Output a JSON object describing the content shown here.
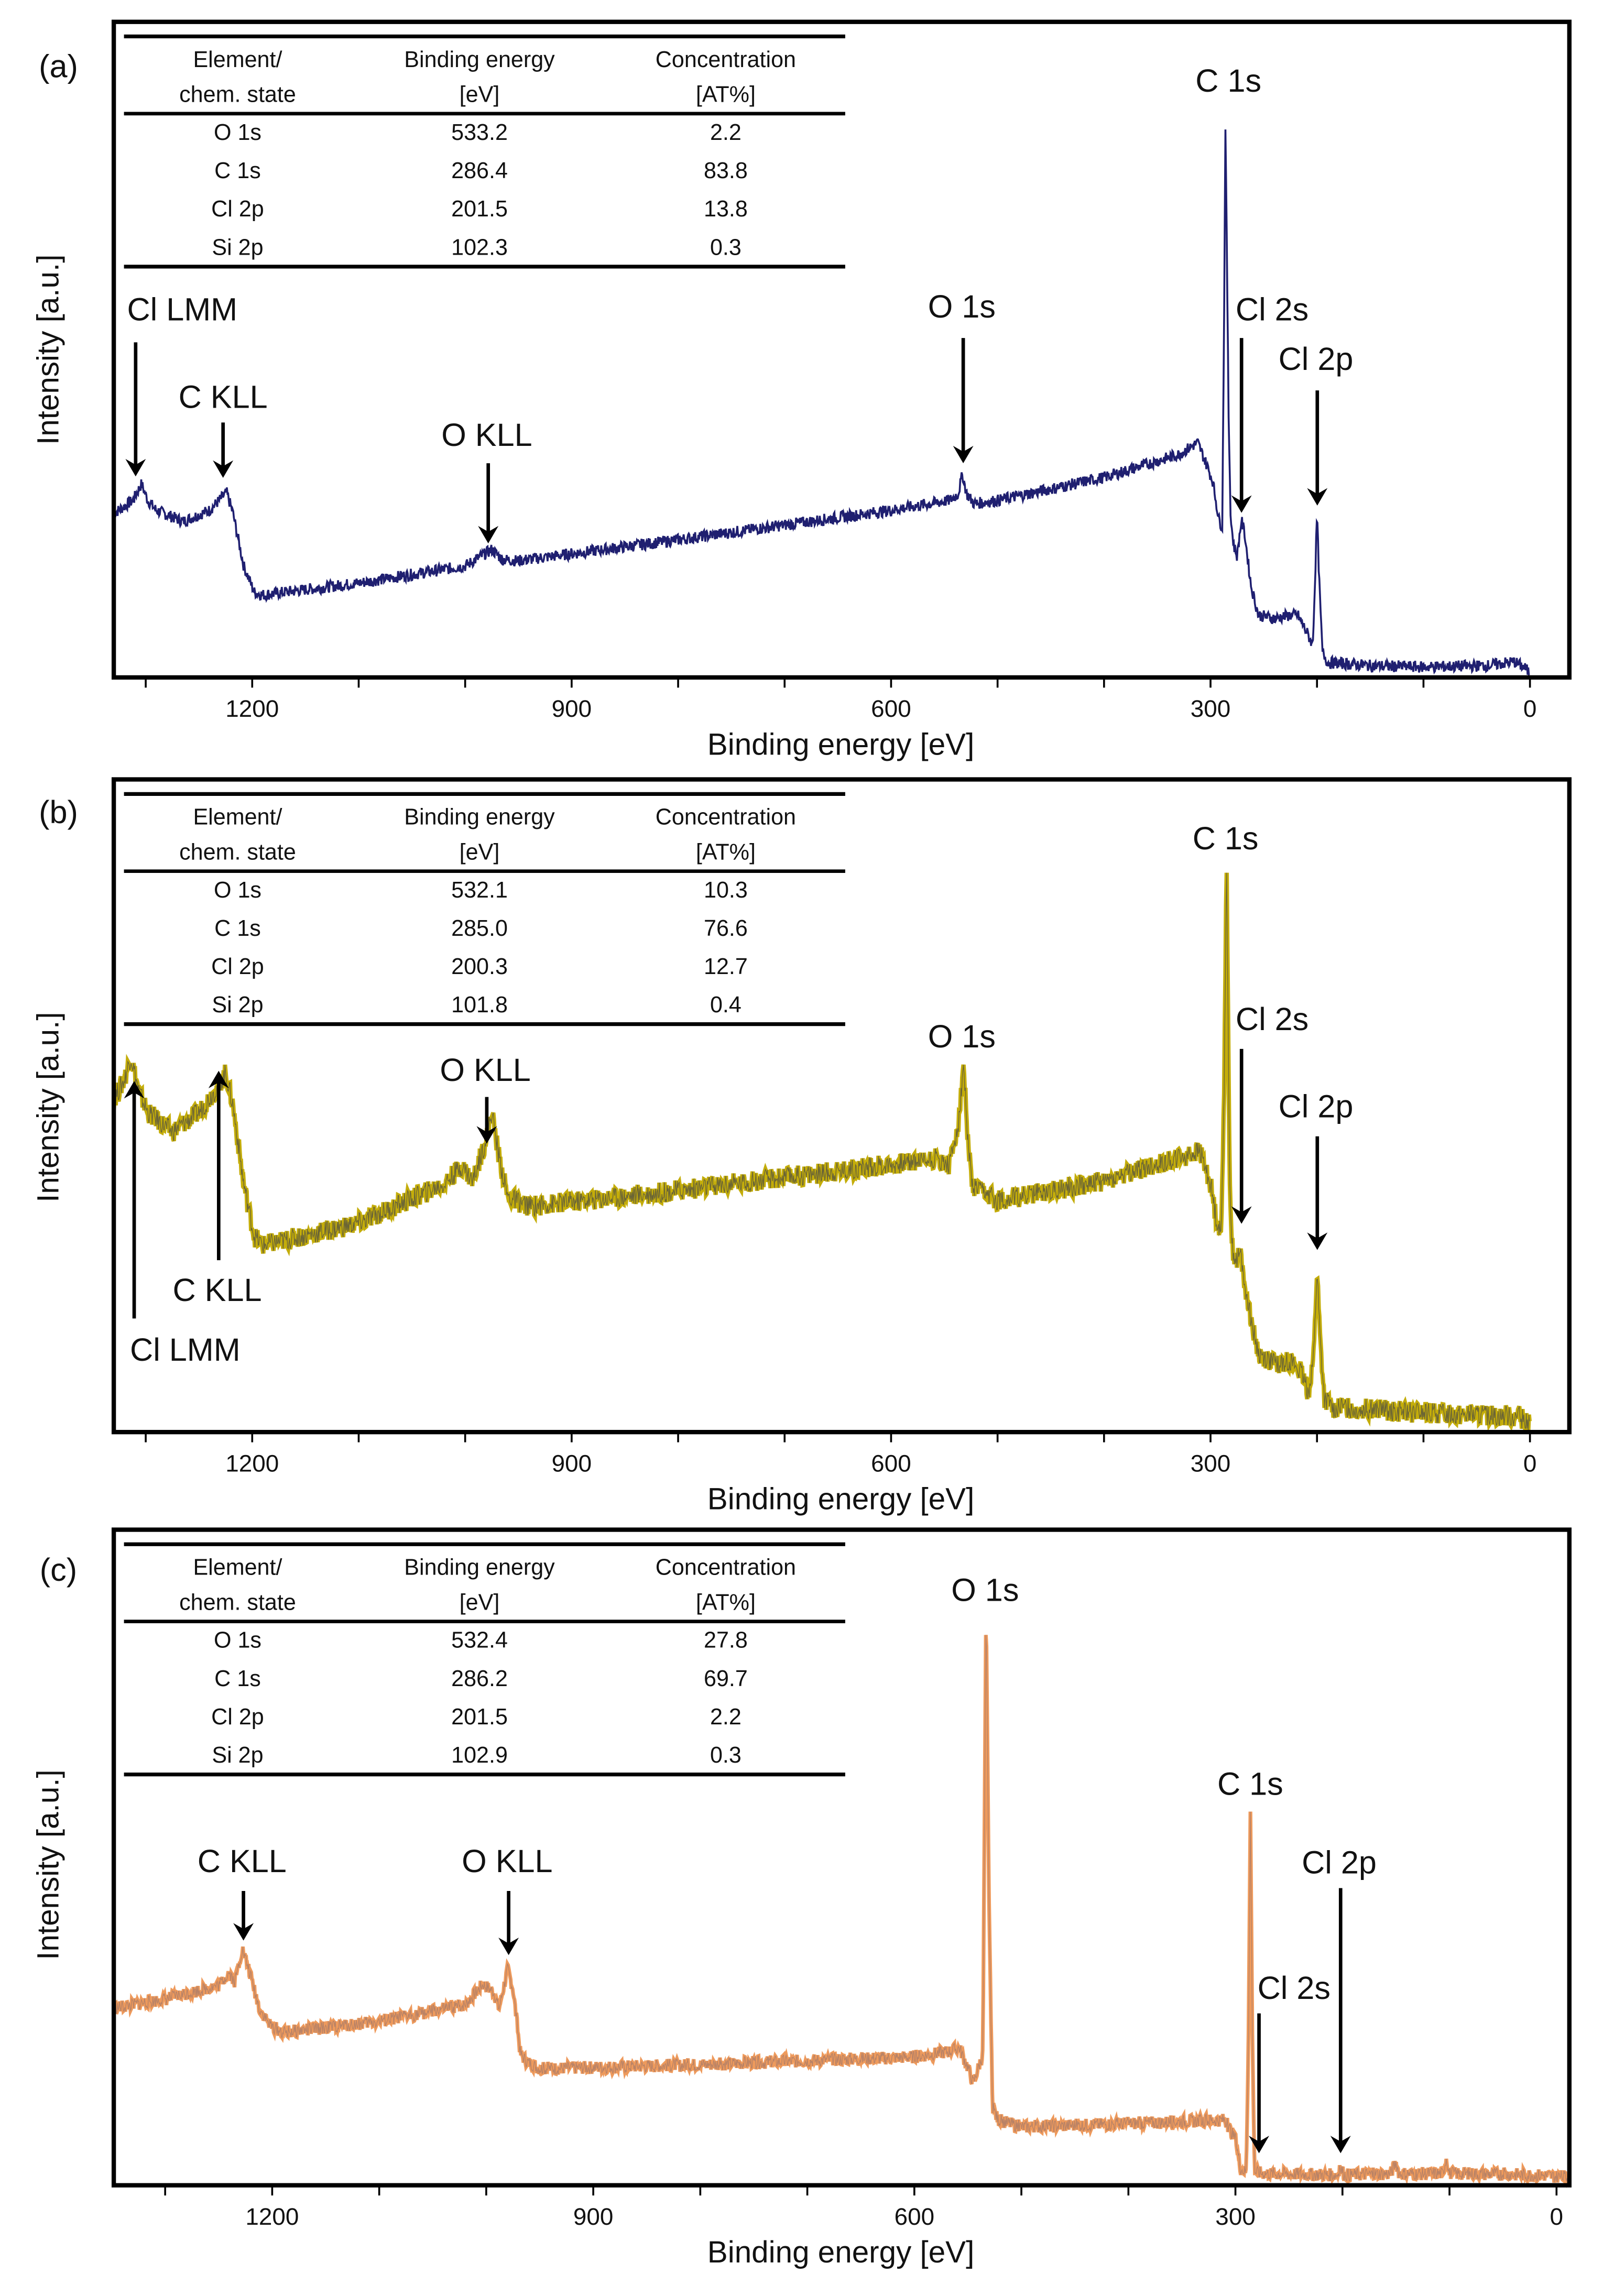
{
  "chart_data": [
    {
      "type": "line",
      "panel_label": "(a)",
      "xlabel": "Binding energy [eV]",
      "ylabel": "Intensity [a.u.]",
      "xlim": [
        1330,
        -37
      ],
      "x_reversed": true,
      "xticks": [
        1200,
        900,
        600,
        300,
        0
      ],
      "minor_tick_step": 100,
      "grid": false,
      "line_color": "#1f1f70",
      "table": {
        "headers": [
          [
            "Element/",
            "chem. state"
          ],
          [
            "Binding energy",
            "[eV]"
          ],
          [
            "Concentration",
            "[AT%]"
          ]
        ],
        "rows": [
          [
            "O 1s",
            "533.2",
            "2.2"
          ],
          [
            "C 1s",
            "286.4",
            "83.8"
          ],
          [
            "Cl 2p",
            "201.5",
            "13.8"
          ],
          [
            "Si 2p",
            "102.3",
            "0.3"
          ]
        ]
      },
      "annotations": [
        {
          "label": "Cl LMM",
          "energy": 1302
        },
        {
          "label": "C KLL",
          "energy": 1225
        },
        {
          "label": "O KLL",
          "energy": 972
        },
        {
          "label": "O 1s",
          "energy": 533
        },
        {
          "label": "C 1s",
          "energy": 286
        },
        {
          "label": "Cl 2s",
          "energy": 270
        },
        {
          "label": "Cl 2p",
          "energy": 200
        }
      ],
      "points": [
        [
          1330,
          25
        ],
        [
          1312,
          27
        ],
        [
          1304,
          29.5
        ],
        [
          1298,
          27
        ],
        [
          1290,
          25.5
        ],
        [
          1265,
          23.8
        ],
        [
          1240,
          25.5
        ],
        [
          1228,
          27.5
        ],
        [
          1224,
          28.2
        ],
        [
          1218,
          25
        ],
        [
          1208,
          17
        ],
        [
          1198,
          13
        ],
        [
          1190,
          12.6
        ],
        [
          1100,
          14.4
        ],
        [
          1000,
          17
        ],
        [
          985,
          18.5
        ],
        [
          975,
          19.5
        ],
        [
          965,
          18
        ],
        [
          950,
          17.8
        ],
        [
          800,
          21
        ],
        [
          600,
          25.5
        ],
        [
          545,
          27
        ],
        [
          537,
          28
        ],
        [
          533,
          31
        ],
        [
          529,
          28
        ],
        [
          522,
          26.5
        ],
        [
          500,
          27
        ],
        [
          400,
          30.5
        ],
        [
          330,
          34
        ],
        [
          312,
          35.8
        ],
        [
          305,
          33
        ],
        [
          298,
          30
        ],
        [
          292,
          24
        ],
        [
          289,
          23
        ],
        [
          287,
          60
        ],
        [
          286,
          84.4
        ],
        [
          285,
          70
        ],
        [
          283,
          40
        ],
        [
          281,
          24
        ],
        [
          278,
          20
        ],
        [
          275,
          18.5
        ],
        [
          271,
          24
        ],
        [
          268,
          22
        ],
        [
          262,
          14
        ],
        [
          255,
          9.5
        ],
        [
          240,
          9
        ],
        [
          225,
          9.5
        ],
        [
          218,
          9.5
        ],
        [
          210,
          7
        ],
        [
          204,
          5
        ],
        [
          202,
          14
        ],
        [
          200,
          25
        ],
        [
          198,
          15
        ],
        [
          195,
          4
        ],
        [
          190,
          2.3
        ],
        [
          150,
          1.8
        ],
        [
          100,
          1.6
        ],
        [
          40,
          1.8
        ],
        [
          15,
          2.4
        ],
        [
          5,
          1.5
        ],
        [
          0,
          0.6
        ]
      ]
    },
    {
      "type": "line",
      "panel_label": "(b)",
      "xlabel": "Binding energy [eV]",
      "ylabel": "Intensity [a.u.]",
      "xlim": [
        1330,
        -37
      ],
      "x_reversed": true,
      "xticks": [
        1200,
        900,
        600,
        300,
        0
      ],
      "minor_tick_step": 100,
      "grid": false,
      "line_color": "#c4ad0a",
      "table": {
        "headers": [
          [
            "Element/",
            "chem. state"
          ],
          [
            "Binding energy",
            "[eV]"
          ],
          [
            "Concentration",
            "[AT%]"
          ]
        ],
        "rows": [
          [
            "O 1s",
            "532.1",
            "10.3"
          ],
          [
            "C 1s",
            "285.0",
            "76.6"
          ],
          [
            "Cl 2p",
            "200.3",
            "12.7"
          ],
          [
            "Si 2p",
            "101.8",
            "0.4"
          ]
        ]
      },
      "annotations": [
        {
          "label": "Cl LMM",
          "energy": 1313
        },
        {
          "label": "C KLL",
          "energy": 1225
        },
        {
          "label": "O KLL",
          "energy": 973
        },
        {
          "label": "O 1s",
          "energy": 532
        },
        {
          "label": "C 1s",
          "energy": 285
        },
        {
          "label": "Cl 2s",
          "energy": 270
        },
        {
          "label": "Cl 2p",
          "energy": 200
        }
      ],
      "points": [
        [
          1330,
          51
        ],
        [
          1320,
          54
        ],
        [
          1314,
          57.6
        ],
        [
          1306,
          52
        ],
        [
          1298,
          49
        ],
        [
          1275,
          46
        ],
        [
          1250,
          49
        ],
        [
          1232,
          53
        ],
        [
          1225,
          55
        ],
        [
          1218,
          50
        ],
        [
          1208,
          38
        ],
        [
          1198,
          30
        ],
        [
          1190,
          28.6
        ],
        [
          1100,
          32
        ],
        [
          1020,
          38
        ],
        [
          1003,
          40.8
        ],
        [
          993,
          38.5
        ],
        [
          982,
          44
        ],
        [
          975,
          49
        ],
        [
          968,
          42
        ],
        [
          960,
          36
        ],
        [
          940,
          34.6
        ],
        [
          800,
          37
        ],
        [
          600,
          41
        ],
        [
          560,
          42
        ],
        [
          545,
          41
        ],
        [
          536,
          48
        ],
        [
          532,
          56.5
        ],
        [
          528,
          45
        ],
        [
          524,
          37.5
        ],
        [
          500,
          35.5
        ],
        [
          400,
          38.5
        ],
        [
          320,
          42.5
        ],
        [
          310,
          43
        ],
        [
          300,
          38
        ],
        [
          295,
          33
        ],
        [
          290,
          30
        ],
        [
          287,
          55
        ],
        [
          285,
          87.7
        ],
        [
          284,
          70
        ],
        [
          282,
          40
        ],
        [
          280,
          28.6
        ],
        [
          276,
          26
        ],
        [
          272,
          27.5
        ],
        [
          268,
          23
        ],
        [
          262,
          17.5
        ],
        [
          255,
          12
        ],
        [
          240,
          10.5
        ],
        [
          225,
          11
        ],
        [
          215,
          9
        ],
        [
          208,
          6
        ],
        [
          203,
          12
        ],
        [
          200,
          25
        ],
        [
          197,
          14
        ],
        [
          193,
          5
        ],
        [
          185,
          3.8
        ],
        [
          150,
          3.5
        ],
        [
          100,
          2.9
        ],
        [
          40,
          2.6
        ],
        [
          10,
          2.4
        ],
        [
          0,
          1
        ]
      ]
    },
    {
      "type": "line",
      "panel_label": "(c)",
      "xlabel": "Binding energy [eV]",
      "ylabel": "Intensity [a.u.]",
      "xlim": [
        1348,
        -12
      ],
      "x_reversed": true,
      "xticks": [
        1200,
        900,
        600,
        300,
        0
      ],
      "minor_tick_step": 100,
      "grid": false,
      "line_color": "#ee9a5c",
      "table": {
        "headers": [
          [
            "Element/",
            "chem. state"
          ],
          [
            "Binding energy",
            "[eV]"
          ],
          [
            "Concentration",
            "[AT%]"
          ]
        ],
        "rows": [
          [
            "O 1s",
            "532.4",
            "27.8"
          ],
          [
            "C 1s",
            "286.2",
            "69.7"
          ],
          [
            "Cl 2p",
            "201.5",
            "2.2"
          ],
          [
            "Si 2p",
            "102.9",
            "0.3"
          ]
        ]
      },
      "annotations": [
        {
          "label": "C KLL",
          "energy": 1228
        },
        {
          "label": "O KLL",
          "energy": 980
        },
        {
          "label": "O 1s",
          "energy": 533
        },
        {
          "label": "C 1s",
          "energy": 286
        },
        {
          "label": "Cl 2s",
          "energy": 270
        },
        {
          "label": "Cl 2p",
          "energy": 200
        }
      ],
      "points": [
        [
          1348,
          27
        ],
        [
          1300,
          28.4
        ],
        [
          1250,
          30.5
        ],
        [
          1240,
          32.5
        ],
        [
          1235,
          31
        ],
        [
          1228,
          36
        ],
        [
          1222,
          33
        ],
        [
          1212,
          27
        ],
        [
          1202,
          24.4
        ],
        [
          1190,
          23.3
        ],
        [
          1100,
          25
        ],
        [
          1020,
          27.5
        ],
        [
          1003,
          30.7
        ],
        [
          993,
          29.5
        ],
        [
          988,
          27
        ],
        [
          980,
          33
        ],
        [
          975,
          30
        ],
        [
          968,
          20
        ],
        [
          962,
          18.9
        ],
        [
          950,
          17.8
        ],
        [
          800,
          18.4
        ],
        [
          600,
          19.6
        ],
        [
          565,
          20.5
        ],
        [
          558,
          21
        ],
        [
          550,
          18
        ],
        [
          545,
          15.6
        ],
        [
          536,
          20
        ],
        [
          533,
          87.8
        ],
        [
          530,
          40
        ],
        [
          527,
          12
        ],
        [
          522,
          10
        ],
        [
          500,
          8.9
        ],
        [
          400,
          9.4
        ],
        [
          310,
          10
        ],
        [
          300,
          7
        ],
        [
          295,
          2.5
        ],
        [
          290,
          2
        ],
        [
          288,
          20
        ],
        [
          286,
          56.7
        ],
        [
          284,
          20
        ],
        [
          282,
          2
        ],
        [
          270,
          1.8
        ],
        [
          205,
          1.6
        ],
        [
          201,
          2.4
        ],
        [
          198,
          1.6
        ],
        [
          155,
          1.8
        ],
        [
          150,
          3.5
        ],
        [
          147,
          1.8
        ],
        [
          106,
          1.8
        ],
        [
          103,
          4.2
        ],
        [
          100,
          1.8
        ],
        [
          50,
          1.7
        ],
        [
          10,
          1.5
        ],
        [
          -12,
          1.2
        ]
      ]
    }
  ]
}
